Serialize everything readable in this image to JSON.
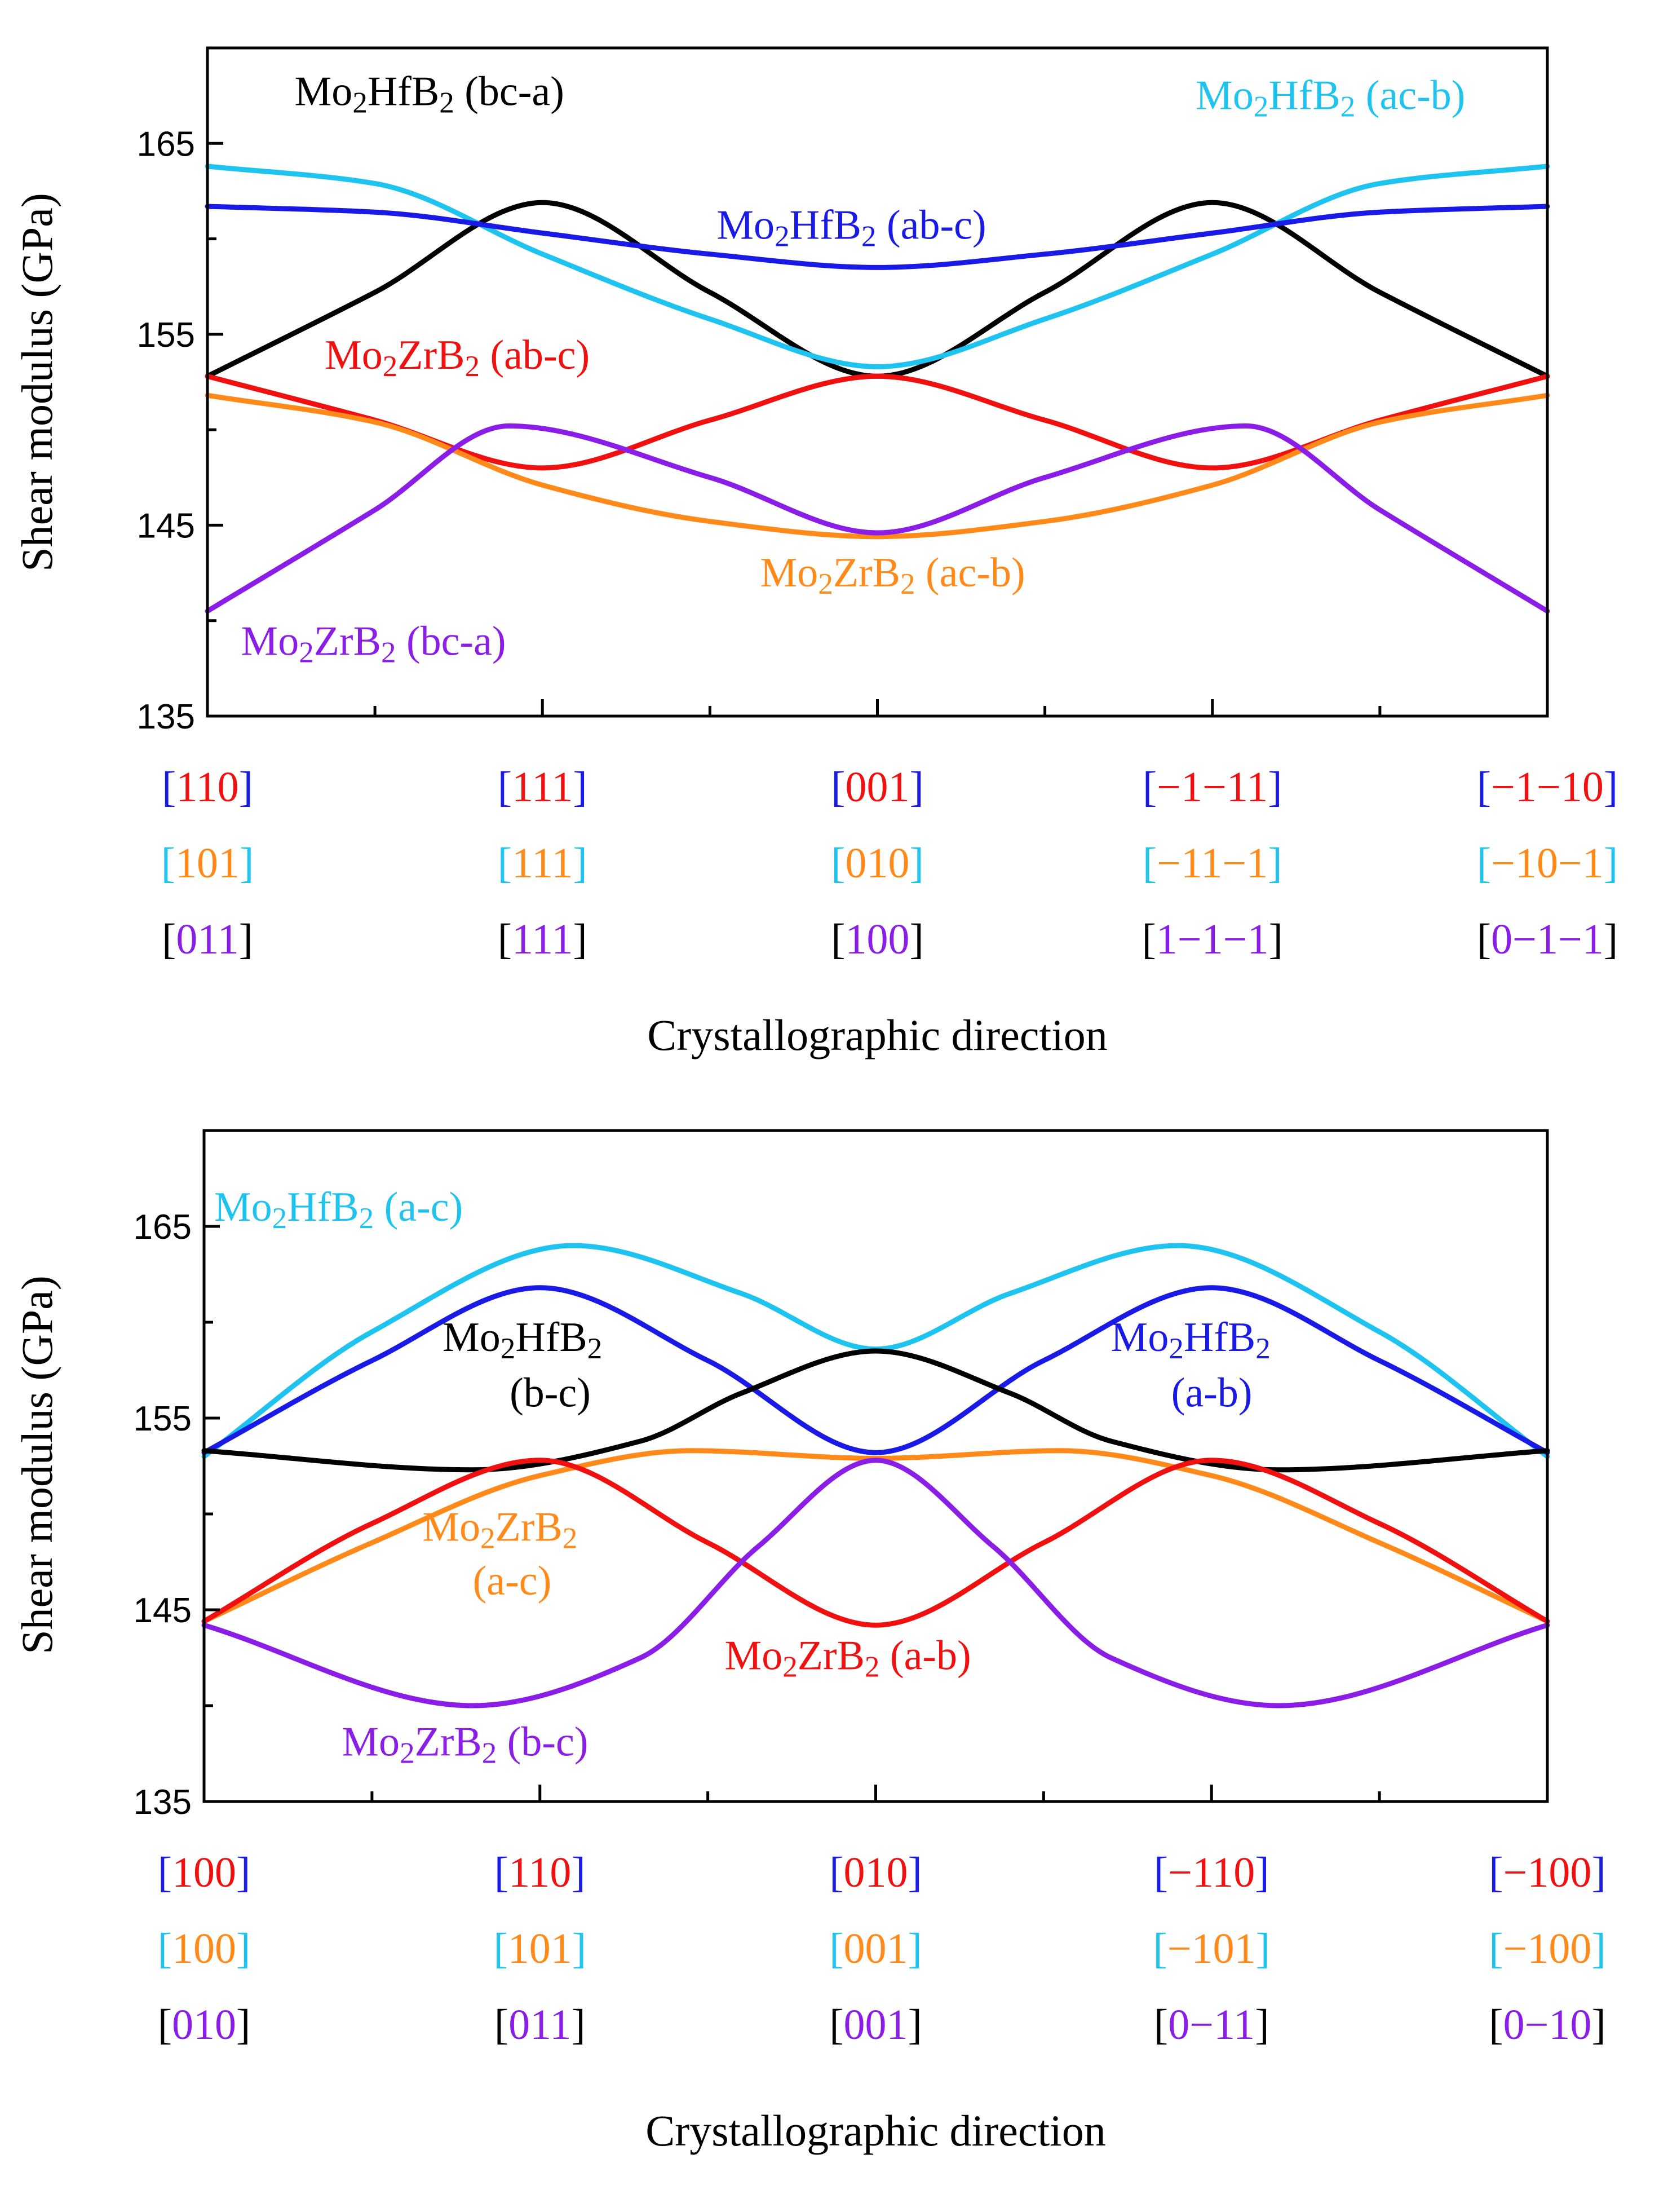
{
  "colors": {
    "blue": "#1a1ae6",
    "cyan": "#1fc3f0",
    "black": "#000000",
    "red": "#f01010",
    "orange": "#ff8a1a",
    "purple": "#8a1ee6"
  },
  "chart_data": [
    {
      "type": "line",
      "xlabel": "Crystallographic direction",
      "ylabel": "Shear modulus (GPa)",
      "ylim": [
        135,
        170
      ],
      "yticks": [
        "135",
        "145",
        "155",
        "165"
      ],
      "x": [
        0,
        1,
        2,
        3,
        4
      ],
      "direction_rows": [
        {
          "bracket_color": "#1a1ae6",
          "text_color": "#f01010",
          "labels": [
            "110",
            "111",
            "001",
            "−1−11",
            "−1−10"
          ]
        },
        {
          "bracket_color": "#1fc3f0",
          "text_color": "#ff8a1a",
          "labels": [
            "101",
            "111",
            "010",
            "−11−1",
            "−10−1"
          ]
        },
        {
          "bracket_color": "#000000",
          "text_color": "#8a1ee6",
          "labels": [
            "011",
            "111",
            "100",
            "1−1−1",
            "0−1−1"
          ]
        }
      ],
      "series": [
        {
          "name": "Mo₂HfB₂ (bc-a)",
          "color": "#000000",
          "points": [
            [
              0,
              152.8
            ],
            [
              0.5,
              157.2
            ],
            [
              1,
              161.9
            ],
            [
              1.5,
              157.2
            ],
            [
              2,
              152.8
            ],
            [
              2.5,
              157.2
            ],
            [
              3,
              161.9
            ],
            [
              3.5,
              157.2
            ],
            [
              4,
              152.8
            ]
          ]
        },
        {
          "name": "Mo₂HfB₂ (ac-b)",
          "color": "#1fc3f0",
          "points": [
            [
              0,
              163.8
            ],
            [
              0.5,
              162.9
            ],
            [
              1,
              159.2
            ],
            [
              1.5,
              155.8
            ],
            [
              2,
              153.3
            ],
            [
              2.5,
              155.8
            ],
            [
              3,
              159.2
            ],
            [
              3.5,
              162.9
            ],
            [
              4,
              163.8
            ]
          ]
        },
        {
          "name": "Mo₂HfB₂ (ab-c)",
          "color": "#1a1ae6",
          "points": [
            [
              0,
              161.7
            ],
            [
              0.5,
              161.4
            ],
            [
              1,
              160.3
            ],
            [
              1.5,
              159.2
            ],
            [
              2,
              158.5
            ],
            [
              2.5,
              159.2
            ],
            [
              3,
              160.3
            ],
            [
              3.5,
              161.4
            ],
            [
              4,
              161.7
            ]
          ]
        },
        {
          "name": "Mo₂ZrB₂ (ab-c)",
          "color": "#f01010",
          "points": [
            [
              0,
              152.8
            ],
            [
              0.5,
              150.5
            ],
            [
              1,
              148.0
            ],
            [
              1.5,
              150.5
            ],
            [
              2,
              152.8
            ],
            [
              2.5,
              150.5
            ],
            [
              3,
              148.0
            ],
            [
              3.5,
              150.5
            ],
            [
              4,
              152.8
            ]
          ]
        },
        {
          "name": "Mo₂ZrB₂ (ac-b)",
          "color": "#ff8a1a",
          "points": [
            [
              0,
              151.8
            ],
            [
              0.5,
              150.4
            ],
            [
              1,
              147.1
            ],
            [
              1.5,
              145.2
            ],
            [
              2,
              144.4
            ],
            [
              2.5,
              145.2
            ],
            [
              3,
              147.1
            ],
            [
              3.5,
              150.4
            ],
            [
              4,
              151.8
            ]
          ]
        },
        {
          "name": "Mo₂ZrB₂ (bc-a)",
          "color": "#8a1ee6",
          "points": [
            [
              0,
              140.5
            ],
            [
              0.5,
              145.8
            ],
            [
              0.9,
              150.2
            ],
            [
              1.5,
              147.5
            ],
            [
              2,
              144.6
            ],
            [
              2.5,
              147.5
            ],
            [
              3.1,
              150.2
            ],
            [
              3.5,
              145.8
            ],
            [
              4,
              140.5
            ]
          ]
        }
      ],
      "annotations": [
        {
          "text": "Mo₂HfB₂ (bc-a)",
          "color": "#000000",
          "x": 0.26,
          "y": 167.0
        },
        {
          "text": "Mo₂HfB₂ (ac-b)",
          "color": "#1fc3f0",
          "x": 2.95,
          "y": 166.8
        },
        {
          "text": "Mo₂HfB₂ (ab-c)",
          "color": "#1a1ae6",
          "x": 1.52,
          "y": 160.0
        },
        {
          "text": "Mo₂ZrB₂ (ab-c)",
          "color": "#f01010",
          "x": 0.35,
          "y": 153.2
        },
        {
          "text": "Mo₂ZrB₂ (ac-b)",
          "color": "#ff8a1a",
          "x": 1.65,
          "y": 141.8
        },
        {
          "text": "Mo₂ZrB₂ (bc-a)",
          "color": "#8a1ee6",
          "x": 0.1,
          "y": 138.2
        }
      ]
    },
    {
      "type": "line",
      "xlabel": "Crystallographic direction",
      "ylabel": "Shear modulus (GPa)",
      "ylim": [
        135,
        170
      ],
      "yticks": [
        "135",
        "145",
        "155",
        "165"
      ],
      "x": [
        0,
        1,
        2,
        3,
        4
      ],
      "direction_rows": [
        {
          "bracket_color": "#1a1ae6",
          "text_color": "#f01010",
          "labels": [
            "100",
            "110",
            "010",
            "−110",
            "−100"
          ]
        },
        {
          "bracket_color": "#1fc3f0",
          "text_color": "#ff8a1a",
          "labels": [
            "100",
            "101",
            "001",
            "−101",
            "−100"
          ]
        },
        {
          "bracket_color": "#000000",
          "text_color": "#8a1ee6",
          "labels": [
            "010",
            "011",
            "001",
            "0−11",
            "0−10"
          ]
        }
      ],
      "series": [
        {
          "name": "Mo₂HfB₂ (a-c)",
          "color": "#1fc3f0",
          "points": [
            [
              0,
              153.0
            ],
            [
              0.5,
              159.5
            ],
            [
              1.1,
              164.0
            ],
            [
              1.6,
              161.5
            ],
            [
              2,
              158.6
            ],
            [
              2.4,
              161.5
            ],
            [
              2.9,
              164.0
            ],
            [
              3.5,
              159.5
            ],
            [
              4,
              153.0
            ]
          ]
        },
        {
          "name": "Mo₂HfB₂ (a-b)",
          "color": "#1a1ae6",
          "points": [
            [
              0,
              153.2
            ],
            [
              0.5,
              158.0
            ],
            [
              1,
              161.8
            ],
            [
              1.5,
              158.0
            ],
            [
              2,
              153.2
            ],
            [
              2.5,
              158.0
            ],
            [
              3,
              161.8
            ],
            [
              3.5,
              158.0
            ],
            [
              4,
              153.2
            ]
          ]
        },
        {
          "name": "Mo₂HfB₂ (b-c)",
          "color": "#000000",
          "points": [
            [
              0,
              153.3
            ],
            [
              0.8,
              152.3
            ],
            [
              1.3,
              153.8
            ],
            [
              1.6,
              156.3
            ],
            [
              2,
              158.5
            ],
            [
              2.4,
              156.3
            ],
            [
              2.7,
              153.8
            ],
            [
              3.2,
              152.3
            ],
            [
              4,
              153.3
            ]
          ]
        },
        {
          "name": "Mo₂ZrB₂ (a-c)",
          "color": "#ff8a1a",
          "points": [
            [
              0,
              144.4
            ],
            [
              0.5,
              148.5
            ],
            [
              1,
              152.0
            ],
            [
              1.45,
              153.3
            ],
            [
              2,
              152.9
            ],
            [
              2.55,
              153.3
            ],
            [
              3,
              152.0
            ],
            [
              3.5,
              148.5
            ],
            [
              4,
              144.4
            ]
          ]
        },
        {
          "name": "Mo₂ZrB₂ (a-b)",
          "color": "#f01010",
          "points": [
            [
              0,
              144.4
            ],
            [
              0.5,
              149.5
            ],
            [
              1,
              152.8
            ],
            [
              1.5,
              148.5
            ],
            [
              2,
              144.2
            ],
            [
              2.5,
              148.5
            ],
            [
              3,
              152.8
            ],
            [
              3.5,
              149.5
            ],
            [
              4,
              144.4
            ]
          ]
        },
        {
          "name": "Mo₂ZrB₂ (b-c)",
          "color": "#8a1ee6",
          "points": [
            [
              0,
              144.2
            ],
            [
              0.8,
              140.0
            ],
            [
              1.3,
              142.5
            ],
            [
              1.65,
              148.3
            ],
            [
              2,
              152.8
            ],
            [
              2.35,
              148.3
            ],
            [
              2.7,
              142.5
            ],
            [
              3.2,
              140.0
            ],
            [
              4,
              144.2
            ]
          ]
        }
      ],
      "annotations": [
        {
          "text": "Mo₂HfB₂ (a-c)",
          "color": "#1fc3f0",
          "x": 0.03,
          "y": 165.3
        },
        {
          "text": "Mo₂HfB₂",
          "color": "#000000",
          "x": 0.71,
          "y": 158.5
        },
        {
          "text": "(b-c)",
          "color": "#000000",
          "x": 0.91,
          "y": 155.6
        },
        {
          "text": "Mo₂HfB₂",
          "color": "#1a1ae6",
          "x": 2.7,
          "y": 158.5
        },
        {
          "text": "(a-b)",
          "color": "#1a1ae6",
          "x": 2.88,
          "y": 155.6
        },
        {
          "text": "Mo₂ZrB₂",
          "color": "#ff8a1a",
          "x": 0.65,
          "y": 148.6
        },
        {
          "text": "(a-c)",
          "color": "#ff8a1a",
          "x": 0.8,
          "y": 145.8
        },
        {
          "text": "Mo₂ZrB₂ (a-b)",
          "color": "#f01010",
          "x": 1.55,
          "y": 141.9
        },
        {
          "text": "Mo₂ZrB₂ (b-c)",
          "color": "#8a1ee6",
          "x": 0.41,
          "y": 137.4
        }
      ]
    }
  ]
}
